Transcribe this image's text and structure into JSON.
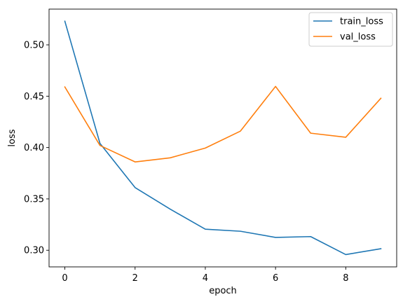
{
  "chart_data": {
    "type": "line",
    "title": "",
    "xlabel": "epoch",
    "ylabel": "loss",
    "xlim": [
      -0.45,
      9.45
    ],
    "ylim": [
      0.2838,
      0.5348
    ],
    "xticks": [
      0,
      2,
      4,
      6,
      8
    ],
    "yticks": [
      0.3,
      0.35,
      0.4,
      0.45,
      0.5
    ],
    "ytick_labels": [
      "0.30",
      "0.35",
      "0.40",
      "0.45",
      "0.50"
    ],
    "grid": false,
    "legend_position": "top-right",
    "x": [
      0,
      1,
      2,
      3,
      4,
      5,
      6,
      7,
      8,
      9
    ],
    "series": [
      {
        "name": "train_loss",
        "color": "#1f77b4",
        "values": [
          0.523,
          0.404,
          0.361,
          0.34,
          0.3205,
          0.3185,
          0.3125,
          0.3133,
          0.2958,
          0.3015
        ]
      },
      {
        "name": "val_loss",
        "color": "#ff7f0e",
        "values": [
          0.459,
          0.402,
          0.386,
          0.39,
          0.3995,
          0.416,
          0.4595,
          0.414,
          0.41,
          0.448
        ]
      }
    ]
  }
}
